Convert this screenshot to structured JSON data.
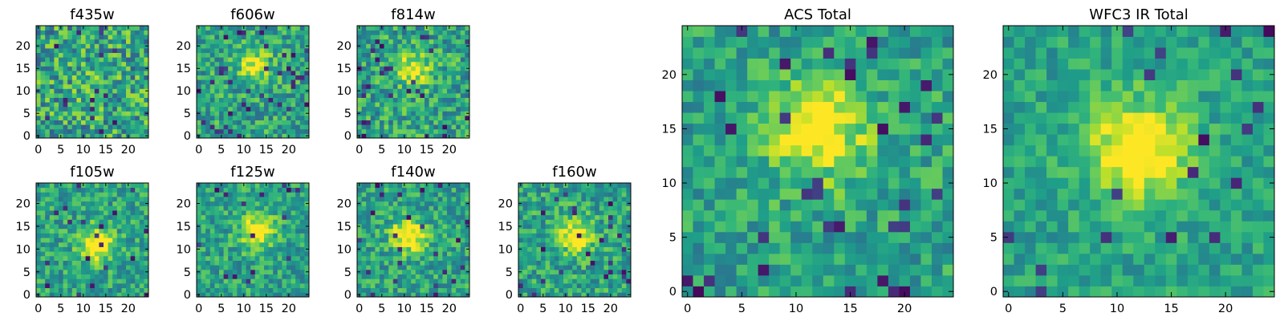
{
  "chart_data": [
    {
      "type": "heatmap",
      "title": "f435w",
      "colormap": "viridis",
      "x_ticks": [
        "0",
        "5",
        "10",
        "15",
        "20"
      ],
      "y_ticks": [
        "0",
        "5",
        "10",
        "15",
        "20"
      ],
      "grid_size": [
        25,
        25
      ],
      "seed": 11,
      "peak": [
        12,
        12
      ],
      "peak_strength": 0.1,
      "noise": 0.42,
      "dark_pixel_rate": 0.03
    },
    {
      "type": "heatmap",
      "title": "f606w",
      "colormap": "viridis",
      "x_ticks": [
        "0",
        "5",
        "10",
        "15",
        "20"
      ],
      "y_ticks": [
        "0",
        "5",
        "10",
        "15",
        "20"
      ],
      "grid_size": [
        25,
        25
      ],
      "seed": 23,
      "peak": [
        12,
        16
      ],
      "peak_strength": 0.38,
      "noise": 0.32,
      "dark_pixel_rate": 0.05
    },
    {
      "type": "heatmap",
      "title": "f814w",
      "colormap": "viridis",
      "x_ticks": [
        "0",
        "5",
        "10",
        "15",
        "20"
      ],
      "y_ticks": [
        "0",
        "5",
        "10",
        "15",
        "20"
      ],
      "grid_size": [
        25,
        25
      ],
      "seed": 37,
      "peak": [
        12,
        15
      ],
      "peak_strength": 0.42,
      "noise": 0.34,
      "dark_pixel_rate": 0.05
    },
    {
      "type": "heatmap",
      "title": "f105w",
      "colormap": "viridis",
      "x_ticks": [
        "0",
        "5",
        "10",
        "15",
        "20"
      ],
      "y_ticks": [
        "0",
        "5",
        "10",
        "15",
        "20"
      ],
      "grid_size": [
        25,
        25
      ],
      "seed": 41,
      "peak": [
        13,
        11
      ],
      "peak_strength": 0.5,
      "noise": 0.28,
      "dark_pixel_rate": 0.03
    },
    {
      "type": "heatmap",
      "title": "f125w",
      "colormap": "viridis",
      "x_ticks": [
        "0",
        "5",
        "10",
        "15",
        "20"
      ],
      "y_ticks": [
        "0",
        "5",
        "10",
        "15",
        "20"
      ],
      "grid_size": [
        25,
        25
      ],
      "seed": 53,
      "peak": [
        13,
        14
      ],
      "peak_strength": 0.5,
      "noise": 0.28,
      "dark_pixel_rate": 0.03
    },
    {
      "type": "heatmap",
      "title": "f140w",
      "colormap": "viridis",
      "x_ticks": [
        "0",
        "5",
        "10",
        "15",
        "20"
      ],
      "y_ticks": [
        "0",
        "5",
        "10",
        "15",
        "20"
      ],
      "grid_size": [
        25,
        25
      ],
      "seed": 67,
      "peak": [
        11,
        13
      ],
      "peak_strength": 0.52,
      "noise": 0.28,
      "dark_pixel_rate": 0.03
    },
    {
      "type": "heatmap",
      "title": "f160w",
      "colormap": "viridis",
      "x_ticks": [
        "0",
        "5",
        "10",
        "15",
        "20"
      ],
      "y_ticks": [
        "0",
        "5",
        "10",
        "15",
        "20"
      ],
      "grid_size": [
        25,
        25
      ],
      "seed": 79,
      "peak": [
        12,
        13
      ],
      "peak_strength": 0.48,
      "noise": 0.3,
      "dark_pixel_rate": 0.04
    },
    {
      "type": "heatmap",
      "title": "ACS Total",
      "colormap": "viridis",
      "x_ticks": [
        "0",
        "5",
        "10",
        "15",
        "20"
      ],
      "y_ticks": [
        "0",
        "5",
        "10",
        "15",
        "20"
      ],
      "grid_size": [
        25,
        25
      ],
      "seed": 91,
      "peak": [
        12,
        15
      ],
      "peak_strength": 0.5,
      "noise": 0.26,
      "dark_pixel_rate": 0.05
    },
    {
      "type": "heatmap",
      "title": "WFC3 IR Total",
      "colormap": "viridis",
      "x_ticks": [
        "0",
        "5",
        "10",
        "15",
        "20"
      ],
      "y_ticks": [
        "0",
        "5",
        "10",
        "15",
        "20"
      ],
      "grid_size": [
        25,
        25
      ],
      "seed": 103,
      "peak": [
        12,
        13
      ],
      "peak_strength": 0.55,
      "noise": 0.2,
      "dark_pixel_rate": 0.04
    }
  ]
}
